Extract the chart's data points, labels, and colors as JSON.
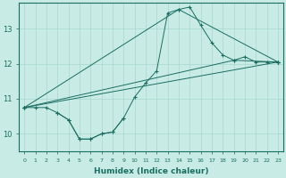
{
  "xlabel": "Humidex (Indice chaleur)",
  "bg_color": "#c8ebe5",
  "grid_color": "#a8d8d0",
  "line_color": "#1a6e62",
  "marker": "+",
  "xlim": [
    -0.5,
    23.5
  ],
  "ylim": [
    9.5,
    13.75
  ],
  "xticks": [
    0,
    1,
    2,
    3,
    4,
    5,
    6,
    7,
    8,
    9,
    10,
    11,
    12,
    13,
    14,
    15,
    16,
    17,
    18,
    19,
    20,
    21,
    22,
    23
  ],
  "yticks": [
    10,
    11,
    12,
    13
  ],
  "series": [
    {
      "x": [
        0,
        1,
        2,
        3,
        4,
        5,
        6,
        7,
        8,
        9,
        10,
        11,
        12,
        13,
        14,
        15,
        16,
        17,
        18,
        19,
        20,
        21,
        22,
        23
      ],
      "y": [
        10.75,
        10.75,
        10.75,
        10.6,
        10.4,
        9.85,
        9.85,
        10.0,
        10.05,
        10.45,
        11.05,
        11.45,
        11.8,
        13.45,
        13.55,
        13.62,
        13.1,
        12.6,
        12.25,
        12.1,
        12.2,
        12.05,
        12.05,
        12.05
      ]
    },
    {
      "x": [
        0,
        14,
        23
      ],
      "y": [
        10.75,
        13.55,
        12.05
      ]
    },
    {
      "x": [
        0,
        23
      ],
      "y": [
        10.75,
        12.05
      ]
    },
    {
      "x": [
        0,
        19,
        23
      ],
      "y": [
        10.75,
        12.1,
        12.05
      ]
    },
    {
      "x": [
        3,
        4,
        5,
        6,
        7,
        8,
        9
      ],
      "y": [
        10.6,
        10.4,
        9.85,
        9.85,
        10.0,
        10.05,
        10.45
      ]
    }
  ]
}
